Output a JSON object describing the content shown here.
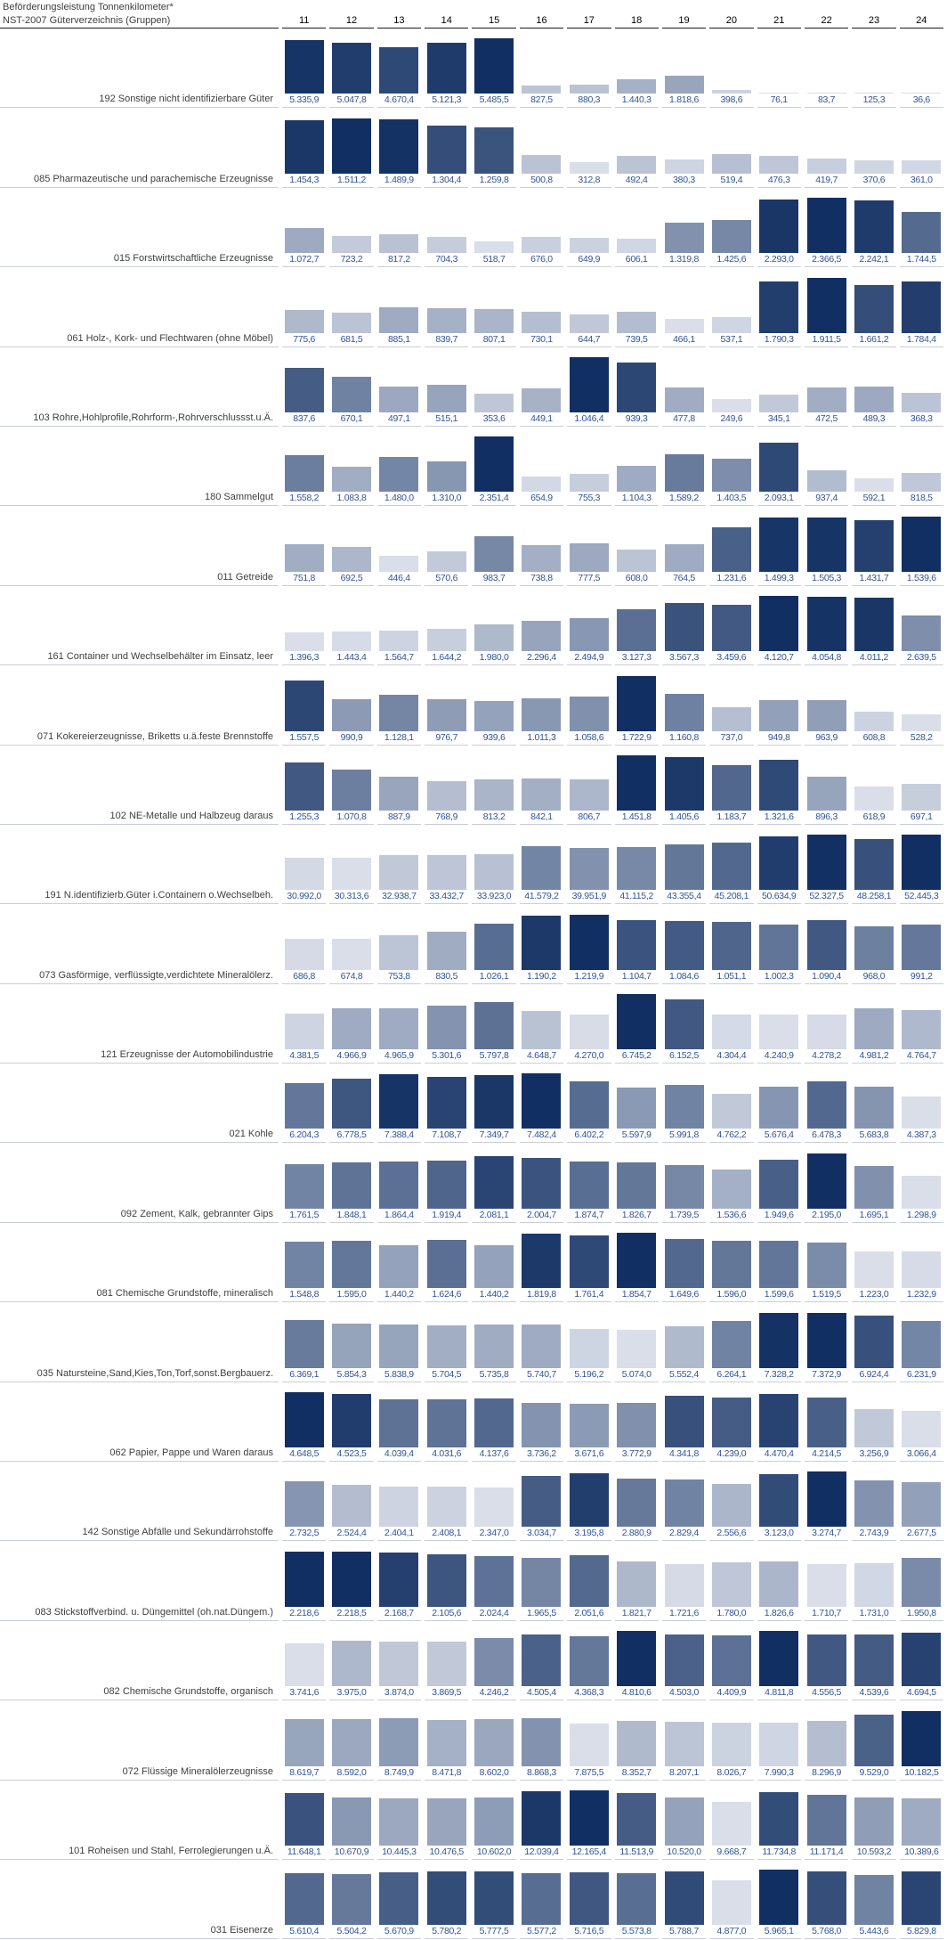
{
  "header": {
    "title": "Beförderungsleistung Tonnenkilometer*",
    "subtitle": "NST-2007 Güterverzeichnis (Gruppen)"
  },
  "colors": {
    "bar_min": "#d9dee9",
    "bar_max": "#112f62",
    "value_text": "#2f5496",
    "label_text": "#404040",
    "row_line": "#c9ced9",
    "header_line": "#1a1a1a"
  },
  "chart_data": {
    "type": "bar",
    "title": "Beförderungsleistung Tonnenkilometer*",
    "categories_label": "NST-2007 Güterverzeichnis (Gruppen)",
    "x": [
      "11",
      "12",
      "13",
      "14",
      "15",
      "16",
      "17",
      "18",
      "19",
      "20",
      "21",
      "22",
      "23",
      "24"
    ],
    "layout": "small-multiples: one bar row per goods group; bar height scaled to row maximum; fill shade scaled per row from min (light) to max (dark); value labels below bars in German number format",
    "rows": [
      {
        "label": "192 Sonstige nicht identifizierbare Güter",
        "values": [
          5335.9,
          5047.8,
          4670.4,
          5121.3,
          5485.5,
          827.5,
          880.3,
          1440.3,
          1818.6,
          398.6,
          76.1,
          83.7,
          125.3,
          36.6
        ]
      },
      {
        "label": "085 Pharmazeutische und parachemische Erzeugnisse",
        "values": [
          1454.3,
          1511.2,
          1489.9,
          1304.4,
          1259.8,
          500.8,
          312.8,
          492.4,
          380.3,
          519.4,
          476.3,
          419.7,
          370.6,
          361.0
        ]
      },
      {
        "label": "015 Forstwirtschaftliche Erzeugnisse",
        "values": [
          1072.7,
          723.2,
          817.2,
          704.3,
          518.7,
          676.0,
          649.9,
          606.1,
          1319.8,
          1425.6,
          2293.0,
          2366.5,
          2242.1,
          1744.5
        ]
      },
      {
        "label": "061 Holz-, Kork- und Flechtwaren (ohne Möbel)",
        "values": [
          775.6,
          681.5,
          885.1,
          839.7,
          807.1,
          730.1,
          644.7,
          739.5,
          466.1,
          537.1,
          1790.3,
          1911.5,
          1661.2,
          1784.4
        ]
      },
      {
        "label": "103 Rohre,Hohlprofile,Rohrform-,Rohrverschlussst.u.Ä.",
        "values": [
          837.6,
          670.1,
          497.1,
          515.1,
          353.6,
          449.1,
          1046.4,
          939.3,
          477.8,
          249.6,
          345.1,
          472.5,
          489.3,
          368.3
        ]
      },
      {
        "label": "180 Sammelgut",
        "values": [
          1558.2,
          1083.8,
          1480.0,
          1310.0,
          2351.4,
          654.9,
          755.3,
          1104.3,
          1589.2,
          1403.5,
          2093.1,
          937.4,
          592.1,
          818.5
        ]
      },
      {
        "label": "011 Getreide",
        "values": [
          751.8,
          692.5,
          446.4,
          570.6,
          983.7,
          738.8,
          777.5,
          608.0,
          764.5,
          1231.6,
          1499.3,
          1505.3,
          1431.7,
          1539.6
        ]
      },
      {
        "label": "161 Container und Wechselbehälter im Einsatz, leer",
        "values": [
          1396.3,
          1443.4,
          1564.7,
          1644.2,
          1980.0,
          2296.4,
          2494.9,
          3127.3,
          3567.3,
          3459.6,
          4120.7,
          4054.8,
          4011.2,
          2639.5
        ]
      },
      {
        "label": "071 Kokereierzeugnisse, Briketts u.ä.feste Brennstoffe",
        "values": [
          1557.5,
          990.9,
          1128.1,
          976.7,
          939.6,
          1011.3,
          1058.6,
          1722.9,
          1160.8,
          737.0,
          949.8,
          963.9,
          608.8,
          528.2
        ]
      },
      {
        "label": "102 NE-Metalle und Halbzeug daraus",
        "values": [
          1255.3,
          1070.8,
          887.9,
          768.9,
          813.2,
          842.1,
          806.7,
          1451.8,
          1405.6,
          1183.7,
          1321.6,
          896.3,
          618.9,
          697.1
        ]
      },
      {
        "label": "191 N.identifizierb.Güter i.Containern o.Wechselbeh.",
        "values": [
          30992.0,
          30313.6,
          32938.7,
          33432.7,
          33923.0,
          41579.2,
          39951.9,
          41115.2,
          43355.4,
          45208.1,
          50634.9,
          52327.5,
          48258.1,
          52445.3
        ]
      },
      {
        "label": "073 Gasförmige, verflüssigte,verdichtete Mineralölerz.",
        "values": [
          686.8,
          674.8,
          753.8,
          830.5,
          1026.1,
          1190.2,
          1219.9,
          1104.7,
          1084.6,
          1051.1,
          1002.3,
          1090.4,
          968.0,
          991.2
        ]
      },
      {
        "label": "121 Erzeugnisse der Automobilindustrie",
        "values": [
          4381.5,
          4966.9,
          4965.9,
          5301.6,
          5797.8,
          4648.7,
          4270.0,
          6745.2,
          6152.5,
          4304.4,
          4240.9,
          4278.2,
          4981.2,
          4764.7
        ]
      },
      {
        "label": "021 Kohle",
        "values": [
          6204.3,
          6778.5,
          7388.4,
          7108.7,
          7349.7,
          7482.4,
          6402.2,
          5597.9,
          5991.8,
          4762.2,
          5676.4,
          6478.3,
          5683.8,
          4387.3
        ]
      },
      {
        "label": "092 Zement, Kalk, gebrannter Gips",
        "values": [
          1761.5,
          1848.1,
          1864.4,
          1919.4,
          2081.1,
          2004.7,
          1874.7,
          1826.7,
          1739.5,
          1536.6,
          1949.6,
          2195.0,
          1695.1,
          1298.9
        ]
      },
      {
        "label": "081 Chemische Grundstoffe, mineralisch",
        "values": [
          1548.8,
          1595.0,
          1440.2,
          1624.6,
          1440.2,
          1819.8,
          1761.4,
          1854.7,
          1649.6,
          1596.0,
          1599.6,
          1519.5,
          1223.0,
          1232.9
        ]
      },
      {
        "label": "035 Natursteine,Sand,Kies,Ton,Torf,sonst.Bergbauerz.",
        "values": [
          6369.1,
          5854.3,
          5838.9,
          5704.5,
          5735.8,
          5740.7,
          5196.2,
          5074.0,
          5552.4,
          6264.1,
          7328.2,
          7372.9,
          6924.4,
          6231.9
        ]
      },
      {
        "label": "062 Papier, Pappe und Waren daraus",
        "values": [
          4648.5,
          4523.5,
          4039.4,
          4031.6,
          4137.6,
          3736.2,
          3671.6,
          3772.9,
          4341.8,
          4239.0,
          4470.4,
          4214.5,
          3256.9,
          3066.4
        ]
      },
      {
        "label": "142 Sonstige Abfälle und Sekundärrohstoffe",
        "values": [
          2732.5,
          2524.4,
          2404.1,
          2408.1,
          2347.0,
          3034.7,
          3195.8,
          2880.9,
          2829.4,
          2556.6,
          3123.0,
          3274.7,
          2743.9,
          2677.5
        ]
      },
      {
        "label": "083 Stickstoffverbind. u. Düngemittel (oh.nat.Düngem.)",
        "values": [
          2218.6,
          2218.5,
          2168.7,
          2105.6,
          2024.4,
          1965.5,
          2051.6,
          1821.7,
          1721.6,
          1780.0,
          1826.6,
          1710.7,
          1731.0,
          1950.8
        ]
      },
      {
        "label": "082 Chemische Grundstoffe, organisch",
        "values": [
          3741.6,
          3975.0,
          3874.0,
          3869.5,
          4246.2,
          4505.4,
          4368.3,
          4810.6,
          4503.0,
          4409.9,
          4811.8,
          4556.5,
          4539.6,
          4694.5
        ]
      },
      {
        "label": "072 Flüssige Mineralölerzeugnisse",
        "values": [
          8619.7,
          8592.0,
          8749.9,
          8471.8,
          8602.0,
          8868.3,
          7875.5,
          8352.7,
          8207.1,
          8026.7,
          7990.3,
          8296.9,
          9529.0,
          10182.5
        ]
      },
      {
        "label": "101 Roheisen und Stahl, Ferrolegierungen u.Ä.",
        "values": [
          11648.1,
          10670.9,
          10445.3,
          10476.5,
          10602.0,
          12039.4,
          12165.4,
          11513.9,
          10520.0,
          9668.7,
          11734.8,
          11171.4,
          10593.2,
          10389.6
        ]
      },
      {
        "label": "031 Eisenerze",
        "values": [
          5610.4,
          5504.2,
          5670.9,
          5780.2,
          5777.5,
          5577.2,
          5716.5,
          5573.8,
          5788.7,
          4877.0,
          5965.1,
          5768.0,
          5443.6,
          5829.8
        ]
      }
    ]
  }
}
